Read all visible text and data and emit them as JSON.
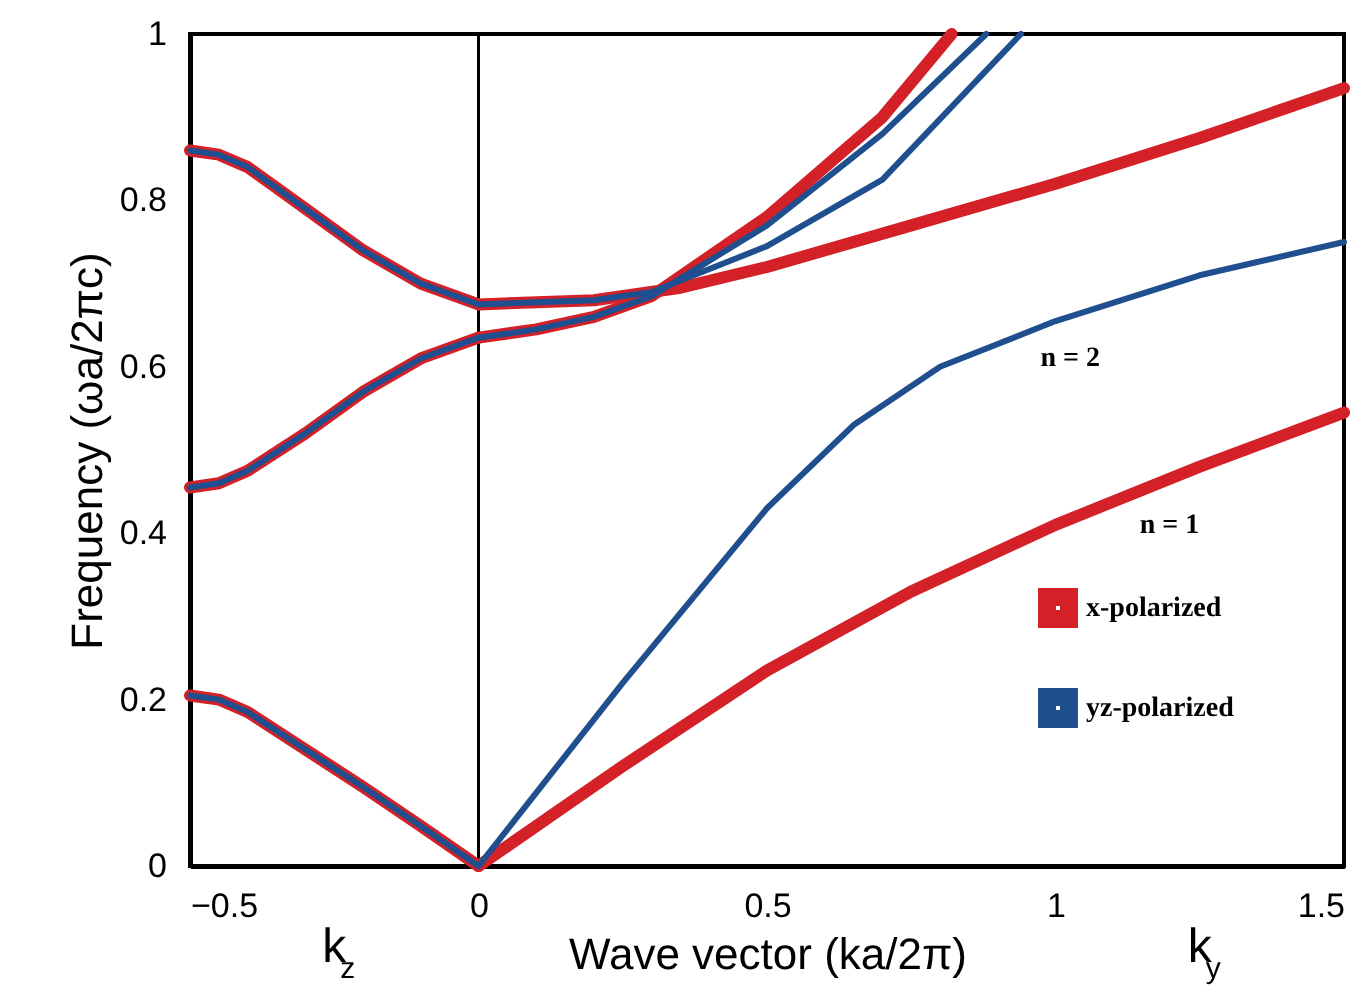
{
  "chart_data": {
    "type": "line",
    "xlabel": "Wave vector (ka/2π)",
    "ylabel": "Frequency (ωa/2πc)",
    "xlim": [
      -0.5,
      1.5
    ],
    "xticks": [
      -0.5,
      0,
      0.5,
      1,
      1.5
    ],
    "ylim": [
      0,
      1
    ],
    "yticks": [
      0,
      0.2,
      0.4,
      0.6,
      0.8,
      1
    ],
    "grid": false,
    "legend": "bottom right",
    "marker": "none",
    "line_style": "solid",
    "ref_lines": [
      {
        "axis": "x",
        "value": 0,
        "color": "#000000"
      }
    ],
    "annotations": [
      "k$_{z}$",
      "k$_{y}$",
      "n = 2",
      "n = 1"
    ],
    "series": [
      {
        "name": "x-polarized",
        "color": "#d42027",
        "x": [
          -0.5,
          -0.45,
          -0.4,
          -0.3,
          -0.2,
          -0.1,
          0,
          null,
          -0.5,
          -0.45,
          -0.4,
          -0.3,
          -0.2,
          -0.1,
          0,
          null,
          -0.5,
          -0.45,
          -0.4,
          -0.3,
          -0.2,
          -0.1,
          0,
          null,
          0,
          0.25,
          0.5,
          0.75,
          1,
          1.25,
          1.5,
          null,
          0,
          0.2,
          0.35,
          0.5,
          0.75,
          1,
          1.25,
          1.5,
          null,
          0,
          0.1,
          0.2,
          0.3,
          0.5,
          0.7,
          0.82
        ],
        "values": [
          0.205,
          0.2,
          0.185,
          0.14,
          0.095,
          0.048,
          0,
          null,
          0.455,
          0.46,
          0.475,
          0.52,
          0.57,
          0.61,
          0.635,
          null,
          0.86,
          0.855,
          0.84,
          0.79,
          0.74,
          0.7,
          0.675,
          null,
          0,
          0.12,
          0.235,
          0.33,
          0.41,
          0.48,
          0.545,
          null,
          0.675,
          0.68,
          0.695,
          0.72,
          0.77,
          0.82,
          0.875,
          0.935,
          null,
          0.635,
          0.645,
          0.66,
          0.685,
          0.78,
          0.9,
          1
        ]
      },
      {
        "name": "yz-polarized",
        "color": "#1f4f8f",
        "x": [
          -0.5,
          -0.45,
          -0.4,
          -0.3,
          -0.2,
          -0.1,
          0,
          null,
          -0.5,
          -0.45,
          -0.4,
          -0.3,
          -0.2,
          -0.1,
          0,
          null,
          -0.5,
          -0.45,
          -0.4,
          -0.3,
          -0.2,
          -0.1,
          0,
          null,
          0,
          0.25,
          0.5,
          0.65,
          0.8,
          1,
          1.25,
          1.5,
          null,
          0,
          0.2,
          0.3,
          0.5,
          0.7,
          0.94,
          null,
          0,
          0.1,
          0.2,
          0.3,
          0.5,
          0.7,
          0.88
        ],
        "values": [
          0.205,
          0.2,
          0.185,
          0.14,
          0.095,
          0.048,
          0,
          null,
          0.455,
          0.46,
          0.475,
          0.52,
          0.57,
          0.61,
          0.635,
          null,
          0.86,
          0.855,
          0.84,
          0.79,
          0.74,
          0.7,
          0.675,
          null,
          0,
          0.22,
          0.43,
          0.53,
          0.6,
          0.655,
          0.71,
          0.75,
          null,
          0.675,
          0.68,
          0.69,
          0.745,
          0.825,
          1,
          null,
          0.635,
          0.645,
          0.66,
          0.685,
          0.77,
          0.88,
          1
        ]
      }
    ]
  }
}
